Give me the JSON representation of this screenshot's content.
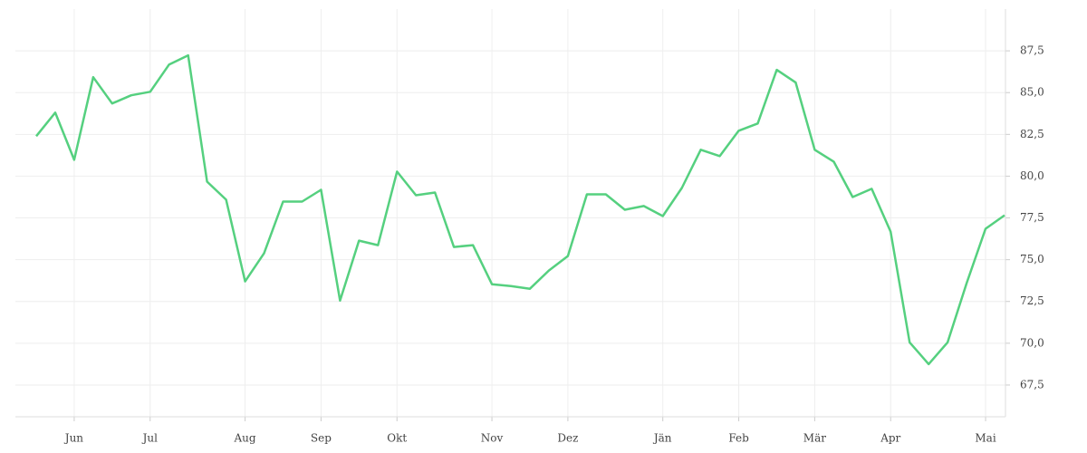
{
  "chart_data": {
    "type": "line",
    "categories": [
      null,
      null,
      "Jun",
      null,
      null,
      null,
      "Jul",
      null,
      null,
      null,
      null,
      "Aug",
      null,
      null,
      null,
      "Sep",
      null,
      null,
      null,
      "Okt",
      null,
      null,
      null,
      null,
      "Nov",
      null,
      null,
      null,
      "Dez",
      null,
      null,
      null,
      null,
      "Jän",
      null,
      null,
      null,
      "Feb",
      null,
      null,
      null,
      "Mär",
      null,
      null,
      null,
      "Apr",
      null,
      null,
      null,
      null,
      "Mai",
      null
    ],
    "series": [
      {
        "color": "#55d07f",
        "values": [
          82.39,
          83.8,
          80.98,
          85.92,
          84.35,
          84.84,
          85.05,
          86.68,
          87.23,
          79.67,
          78.59,
          73.7,
          75.38,
          78.48,
          78.48,
          79.18,
          72.55,
          76.14,
          75.87,
          80.27,
          78.86,
          79.02,
          75.76,
          75.87,
          73.53,
          73.42,
          73.26,
          74.35,
          75.22,
          78.91,
          78.91,
          77.99,
          78.21,
          77.61,
          79.29,
          81.58,
          81.2,
          82.72,
          83.15,
          86.36,
          85.6,
          81.58,
          80.87,
          78.75,
          79.24,
          76.68,
          70.05,
          68.75,
          70.05,
          73.59,
          76.85,
          77.66
        ]
      }
    ],
    "ylim": [
      65.6,
      90
    ],
    "yticks": [
      {
        "value": 67.5,
        "label": "67,5"
      },
      {
        "value": 70,
        "label": "70,0"
      },
      {
        "value": 72.5,
        "label": "72,5"
      },
      {
        "value": 75,
        "label": "75,0"
      },
      {
        "value": 77.5,
        "label": "77,5"
      },
      {
        "value": 80,
        "label": "80,0"
      },
      {
        "value": 82.5,
        "label": "82,5"
      },
      {
        "value": 85,
        "label": "85,0"
      },
      {
        "value": 87.5,
        "label": "87,5"
      }
    ],
    "grid": true
  }
}
